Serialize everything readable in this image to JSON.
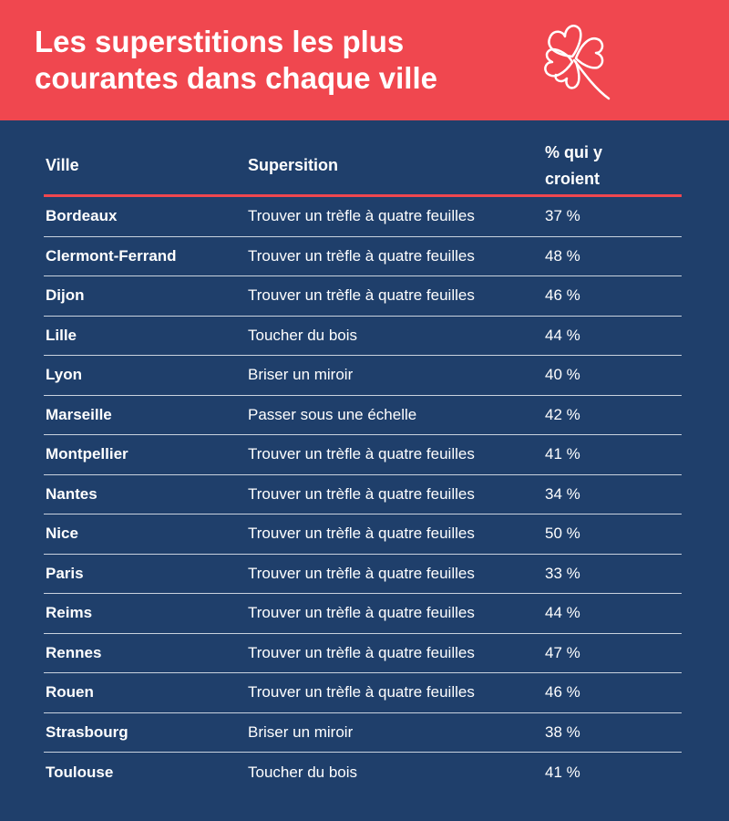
{
  "header": {
    "title": "Les superstitions les plus courantes dans chaque ville"
  },
  "table": {
    "columns": [
      "Ville",
      "Supersition",
      "% qui y croient"
    ],
    "rows": [
      [
        "Bordeaux",
        "Trouver un trèfle à quatre feuilles",
        "37 %"
      ],
      [
        "Clermont-Ferrand",
        "Trouver un trèfle à quatre feuilles",
        "48 %"
      ],
      [
        "Dijon",
        "Trouver un trèfle à quatre feuilles",
        "46 %"
      ],
      [
        "Lille",
        "Toucher du bois",
        "44 %"
      ],
      [
        "Lyon",
        "Briser un miroir",
        "40 %"
      ],
      [
        "Marseille",
        "Passer sous une échelle",
        "42 %"
      ],
      [
        "Montpellier",
        "Trouver un trèfle à quatre feuilles",
        "41 %"
      ],
      [
        "Nantes",
        "Trouver un trèfle à quatre feuilles",
        "34 %"
      ],
      [
        "Nice",
        "Trouver un trèfle à quatre feuilles",
        "50 %"
      ],
      [
        "Paris",
        "Trouver un trèfle à quatre feuilles",
        "33 %"
      ],
      [
        "Reims",
        "Trouver un trèfle à quatre feuilles",
        "44 %"
      ],
      [
        "Rennes",
        "Trouver un trèfle à quatre feuilles",
        "47 %"
      ],
      [
        "Rouen",
        "Trouver un trèfle à quatre feuilles",
        "46 %"
      ],
      [
        "Strasbourg",
        "Briser un miroir",
        "38 %"
      ],
      [
        "Toulouse",
        "Toucher du bois",
        "41 %"
      ]
    ]
  }
}
